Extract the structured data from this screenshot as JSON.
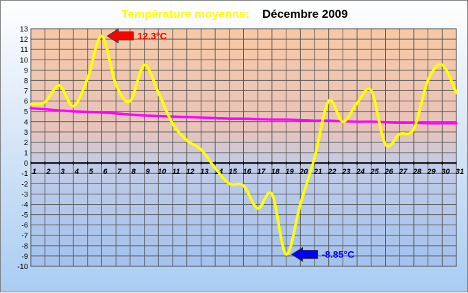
{
  "chart_data": {
    "type": "line",
    "title_part1": "Température moyenne:",
    "title_part2": "Décembre 2009",
    "x": [
      1,
      2,
      3,
      4,
      5,
      6,
      7,
      8,
      9,
      10,
      11,
      12,
      13,
      14,
      15,
      16,
      17,
      18,
      19,
      20,
      21,
      22,
      23,
      24,
      25,
      26,
      27,
      28,
      29,
      30,
      31
    ],
    "series": [
      {
        "name": "",
        "color": "#ffff00",
        "values": [
          5.7,
          5.9,
          7.5,
          5.5,
          8.2,
          12.3,
          7.6,
          6.0,
          9.5,
          6.8,
          3.8,
          2.2,
          1.3,
          -0.5,
          -2.0,
          -2.2,
          -4.4,
          -3.0,
          -8.85,
          -4.0,
          0.5,
          6.0,
          4.0,
          5.8,
          7.0,
          1.8,
          2.8,
          3.3,
          8.0,
          9.5,
          6.8
        ]
      },
      {
        "name": "",
        "color": "#ff00ff",
        "values": [
          5.3,
          5.2,
          5.1,
          5.0,
          4.95,
          4.9,
          4.8,
          4.7,
          4.6,
          4.55,
          4.5,
          4.45,
          4.4,
          4.35,
          4.3,
          4.3,
          4.25,
          4.2,
          4.2,
          4.15,
          4.1,
          4.1,
          4.05,
          4.0,
          4.0,
          3.95,
          3.9,
          3.9,
          3.85,
          3.85,
          3.85
        ]
      }
    ],
    "ylim": [
      -10,
      13
    ],
    "xlim": [
      1,
      31
    ],
    "grid": true,
    "annotations": [
      {
        "text": "12.3°C",
        "x": 6,
        "y": 12.3,
        "color": "#ff0000"
      },
      {
        "text": "-8.85°C",
        "x": 19,
        "y": -8.85,
        "color": "#0000ff"
      }
    ]
  }
}
